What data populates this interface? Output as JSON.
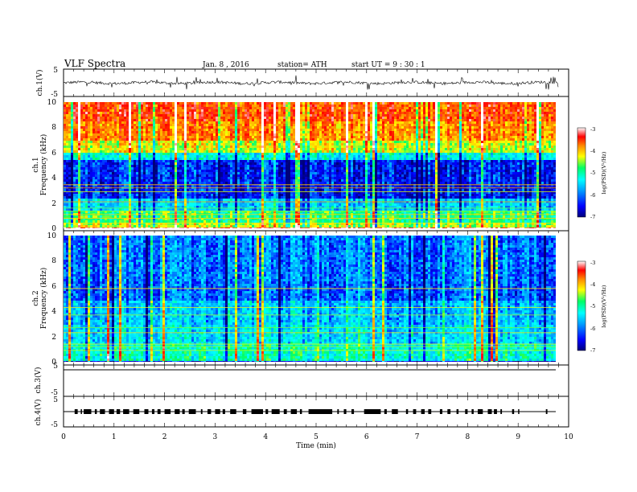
{
  "header": {
    "title": "VLF  Spectra",
    "date": "Jan.  8  , 2016",
    "station": "station= ATH",
    "start": "start  UT  =    9  : 30 : 1"
  },
  "colors": {
    "colormap": [
      "#00007a",
      "#0000ff",
      "#00a0ff",
      "#00ffff",
      "#00ff66",
      "#ffff00",
      "#ff8800",
      "#ff0000",
      "#ffffff"
    ],
    "trace": "#000000",
    "frame": "#000000"
  },
  "chart_data": [
    {
      "type": "line",
      "name": "ch1-waveform",
      "ylabel": "ch.1(V)",
      "ylim": [
        -5,
        5
      ],
      "yticks": [
        "5",
        "-5"
      ],
      "baseline": 0
    },
    {
      "type": "heatmap",
      "name": "ch1-spectrogram",
      "ylabel_channel": "ch.1",
      "ylabel": "Frequency  (kHz)",
      "ylim": [
        0,
        10
      ],
      "yticks": [
        "0",
        "2",
        "4",
        "6",
        "8",
        "10"
      ],
      "colorbar": {
        "label": "log(PSD)(V²/Hz)",
        "range": [
          -7,
          -3
        ],
        "ticks": [
          "-3",
          "-4",
          "-5",
          "-6",
          "-7"
        ]
      },
      "band_levels": [
        [
          0,
          0.25,
          0.95
        ],
        [
          0.25,
          0.5,
          0.6
        ],
        [
          0.5,
          1.5,
          0.5
        ],
        [
          1.5,
          2.5,
          0.32
        ],
        [
          2.5,
          5.5,
          0.14
        ],
        [
          5.5,
          6.0,
          0.38
        ],
        [
          6.0,
          7.0,
          0.62
        ],
        [
          7.0,
          8.5,
          0.75
        ],
        [
          8.5,
          10.0,
          0.82
        ]
      ],
      "tones_kHz": [
        0.4,
        0.8,
        1.1,
        1.35,
        1.6,
        2.1,
        2.9,
        3.2,
        3.45
      ]
    },
    {
      "type": "heatmap",
      "name": "ch2-spectrogram",
      "ylabel_channel": "ch.2",
      "ylabel": "Frequency  (kHz)",
      "ylim": [
        0,
        10
      ],
      "yticks": [
        "0",
        "2",
        "4",
        "6",
        "8",
        "10"
      ],
      "colorbar": {
        "label": "log(PSD)(V²/Hz)",
        "range": [
          -7,
          -3
        ],
        "ticks": [
          "-3",
          "-4",
          "-5",
          "-6",
          "-7"
        ]
      },
      "band_levels": [
        [
          0,
          0.25,
          0.1
        ],
        [
          0.25,
          1.5,
          0.42
        ],
        [
          1.5,
          3.0,
          0.34
        ],
        [
          3.0,
          5.0,
          0.3
        ],
        [
          5.0,
          6.5,
          0.2
        ],
        [
          6.5,
          10.0,
          0.22
        ]
      ],
      "tones_kHz": [
        0.9,
        1.2,
        1.4,
        2.3,
        2.7,
        3.7,
        4.3,
        5.8
      ]
    },
    {
      "type": "line",
      "name": "ch3-waveform",
      "ylabel": "ch.3(V)",
      "ylim": [
        -5,
        5
      ],
      "yticks": [
        "5",
        "-5"
      ],
      "baseline": 0
    },
    {
      "type": "line",
      "name": "ch4-waveform",
      "ylabel": "ch.4(V)",
      "ylim": [
        -5,
        5
      ],
      "yticks": [
        "5",
        "-5"
      ],
      "baseline": 0,
      "burst_intervals_min": [
        [
          0.22,
          0.28
        ],
        [
          0.34,
          0.36
        ],
        [
          0.4,
          0.55
        ],
        [
          0.62,
          0.66
        ],
        [
          0.72,
          0.82
        ],
        [
          0.9,
          1.0
        ],
        [
          1.05,
          1.12
        ],
        [
          1.18,
          1.3
        ],
        [
          1.38,
          1.5
        ],
        [
          1.6,
          1.68
        ],
        [
          1.75,
          1.8
        ],
        [
          1.86,
          1.92
        ],
        [
          2.0,
          2.12
        ],
        [
          2.2,
          2.3
        ],
        [
          2.35,
          2.4
        ],
        [
          2.48,
          2.62
        ],
        [
          2.72,
          2.75
        ],
        [
          2.85,
          2.92
        ],
        [
          3.0,
          3.1
        ],
        [
          3.15,
          3.2
        ],
        [
          3.3,
          3.42
        ],
        [
          3.55,
          3.62
        ],
        [
          3.72,
          3.95
        ],
        [
          4.0,
          4.05
        ],
        [
          4.12,
          4.28
        ],
        [
          4.36,
          4.42
        ],
        [
          4.5,
          4.62
        ],
        [
          4.68,
          4.72
        ],
        [
          4.85,
          5.32
        ],
        [
          5.42,
          5.45
        ],
        [
          5.55,
          5.6
        ],
        [
          5.7,
          5.75
        ],
        [
          5.95,
          6.28
        ],
        [
          6.35,
          6.4
        ],
        [
          6.5,
          6.62
        ],
        [
          6.78,
          6.82
        ],
        [
          6.92,
          6.98
        ],
        [
          7.08,
          7.15
        ],
        [
          7.22,
          7.28
        ],
        [
          7.45,
          7.5
        ],
        [
          7.6,
          7.66
        ],
        [
          7.78,
          7.82
        ],
        [
          7.95,
          8.0
        ],
        [
          8.08,
          8.12
        ],
        [
          8.2,
          8.3
        ],
        [
          8.4,
          8.48
        ],
        [
          8.52,
          8.58
        ],
        [
          8.65,
          8.68
        ],
        [
          8.88,
          8.92
        ],
        [
          9.0,
          9.02
        ],
        [
          9.55,
          9.58
        ]
      ]
    }
  ],
  "time_axis": {
    "label": "Time  (min)",
    "range": [
      0,
      10
    ],
    "data_end": 9.8,
    "ticks": [
      "0",
      "1",
      "2",
      "3",
      "4",
      "5",
      "6",
      "7",
      "8",
      "9",
      "10"
    ]
  }
}
